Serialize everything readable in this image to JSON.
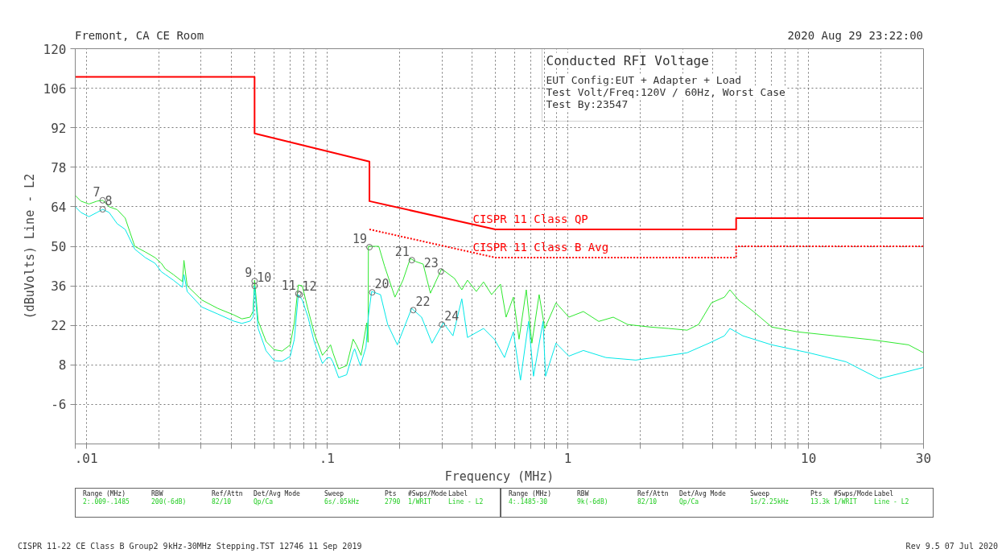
{
  "chart_data": {
    "type": "line",
    "title": "Conducted RFI Voltage",
    "xlabel": "Frequency (MHz)",
    "ylabel": "(dBuVolts) Line - L2",
    "log": "x",
    "grid": true,
    "marker": "none",
    "xlim": [
      0.009,
      30
    ],
    "ylim": [
      -20,
      120
    ],
    "xticks": [
      {
        "value": 0.009,
        "label": null
      },
      {
        "value": 0.01,
        "label": ".01"
      },
      {
        "value": 0.02,
        "label": null
      },
      {
        "value": 0.03,
        "label": null
      },
      {
        "value": 0.04,
        "label": null
      },
      {
        "value": 0.05,
        "label": null
      },
      {
        "value": 0.06,
        "label": null
      },
      {
        "value": 0.07,
        "label": null
      },
      {
        "value": 0.08,
        "label": null
      },
      {
        "value": 0.09,
        "label": null
      },
      {
        "value": 0.1,
        "label": ".1"
      },
      {
        "value": 0.2,
        "label": null
      },
      {
        "value": 0.3,
        "label": null
      },
      {
        "value": 0.4,
        "label": null
      },
      {
        "value": 0.5,
        "label": null
      },
      {
        "value": 0.6,
        "label": null
      },
      {
        "value": 0.7,
        "label": null
      },
      {
        "value": 0.8,
        "label": null
      },
      {
        "value": 0.9,
        "label": null
      },
      1,
      {
        "value": 2,
        "label": null
      },
      {
        "value": 3,
        "label": null
      },
      {
        "value": 4,
        "label": null
      },
      {
        "value": 5,
        "label": null
      },
      {
        "value": 6,
        "label": null
      },
      {
        "value": 7,
        "label": null
      },
      {
        "value": 8,
        "label": null
      },
      {
        "value": 9,
        "label": null
      },
      10,
      {
        "value": 20,
        "label": null
      },
      30
    ],
    "yticks": [
      -6,
      8,
      22,
      36,
      50,
      64,
      78,
      92,
      106,
      120
    ],
    "series": [
      {
        "name": "CISPR 11 Class QP",
        "color": "#ff0000",
        "line_style": "solid",
        "x": [
          0.009,
          0.05,
          0.05,
          0.15,
          0.15,
          0.5,
          5,
          5,
          30
        ],
        "values": [
          110,
          110,
          90,
          80,
          66,
          56,
          56,
          60,
          60
        ]
      },
      {
        "name": "CISPR 11 Class B Avg",
        "color": "#ff0000",
        "line_style": "dotted",
        "x": [
          0.15,
          0.5,
          5,
          5,
          30
        ],
        "values": [
          56,
          46,
          46,
          50,
          50
        ]
      },
      {
        "color": "#2ee82e",
        "line_style": "solid",
        "x": [
          0.009,
          0.0095,
          0.01026,
          0.01108,
          0.0117,
          0.01244,
          0.01344,
          0.01451,
          0.0159,
          0.01759,
          0.0193,
          0.0205,
          0.0213,
          0.023,
          0.02507,
          0.02545,
          0.02625,
          0.03016,
          0.0352,
          0.041,
          0.0443,
          0.0479,
          0.0493,
          0.05,
          0.0517,
          0.0558,
          0.0603,
          0.0651,
          0.0703,
          0.0731,
          0.076,
          0.0789,
          0.0833,
          0.0886,
          0.0957,
          0.1,
          0.1034,
          0.1058,
          0.1117,
          0.1206,
          0.1283,
          0.1323,
          0.1385,
          0.1462,
          0.148,
          0.1485,
          0.164,
          0.1733,
          0.1914,
          0.2067,
          0.2216,
          0.2338,
          0.2507,
          0.2687,
          0.2992,
          0.3385,
          0.3628,
          0.383,
          0.4168,
          0.4467,
          0.4823,
          0.525,
          0.554,
          0.594,
          0.627,
          0.672,
          0.709,
          0.76,
          0.802,
          0.893,
          1.01,
          1.16,
          1.344,
          1.544,
          1.773,
          2.2,
          2.62,
          3.13,
          3.49,
          3.95,
          4.47,
          4.71,
          5.13,
          5.9,
          7.03,
          9.0,
          12.8,
          18.3,
          26.0,
          30
        ],
        "values": [
          68,
          66,
          65,
          66,
          66.3,
          64,
          63,
          60,
          50,
          48,
          46,
          44,
          42,
          40,
          37.5,
          45,
          36,
          31,
          28,
          25.7,
          24.3,
          24.9,
          27,
          38,
          23.7,
          16.3,
          13.4,
          12.9,
          15.1,
          22.9,
          36.3,
          36,
          27.7,
          19,
          11.4,
          13.4,
          15.1,
          12.3,
          6.6,
          7.7,
          17.1,
          15.1,
          11.4,
          22.9,
          16,
          50,
          50,
          43,
          32,
          38,
          45.7,
          44.6,
          43.7,
          33.4,
          42,
          38.6,
          34.6,
          38,
          34,
          37.4,
          32.9,
          36.6,
          24.9,
          32,
          17.1,
          34.6,
          15.7,
          32.9,
          20.9,
          30,
          24.9,
          26.9,
          23.4,
          24.9,
          22.3,
          21.4,
          20.9,
          20.3,
          22.3,
          30,
          32,
          34.6,
          30.9,
          26.9,
          21.4,
          19.7,
          18.3,
          16.9,
          15.1,
          12.3
        ]
      },
      {
        "color": "#00e8e8",
        "line_style": "solid",
        "x": [
          0.009,
          0.0095,
          0.01026,
          0.01108,
          0.0117,
          0.01244,
          0.01344,
          0.01451,
          0.0159,
          0.01759,
          0.0193,
          0.0205,
          0.0213,
          0.023,
          0.02507,
          0.02545,
          0.02625,
          0.03016,
          0.0352,
          0.041,
          0.0443,
          0.0479,
          0.0493,
          0.05,
          0.0517,
          0.0558,
          0.0603,
          0.0651,
          0.0703,
          0.0731,
          0.076,
          0.0789,
          0.0833,
          0.0886,
          0.0957,
          0.1,
          0.1034,
          0.1058,
          0.1117,
          0.1206,
          0.1283,
          0.1302,
          0.1375,
          0.1451,
          0.1485,
          0.1532,
          0.1667,
          0.1786,
          0.1959,
          0.2245,
          0.2469,
          0.2728,
          0.3039,
          0.3333,
          0.3628,
          0.383,
          0.4467,
          0.4974,
          0.5456,
          0.594,
          0.636,
          0.687,
          0.72,
          0.789,
          0.808,
          0.893,
          1.01,
          1.16,
          1.439,
          1.914,
          2.53,
          3.13,
          3.86,
          4.47,
          4.71,
          5.33,
          7.03,
          10.0,
          14.3,
          19.6,
          24.3,
          30
        ],
        "values": [
          64,
          62,
          60.5,
          62,
          63.1,
          62,
          58,
          56,
          49,
          46,
          44,
          41,
          40,
          38,
          35.5,
          40,
          34,
          28.5,
          26,
          23.5,
          22.7,
          23.5,
          25,
          36,
          21,
          13,
          9.5,
          9.3,
          11,
          17,
          32.9,
          31,
          25,
          16,
          8.5,
          10.5,
          10.5,
          9,
          3.5,
          4.5,
          12.5,
          13.7,
          7.7,
          14.3,
          25.4,
          34,
          32.9,
          22.3,
          15.1,
          28,
          24.9,
          15.7,
          22.9,
          18.3,
          31.4,
          17.7,
          20.9,
          16.9,
          10.6,
          19.7,
          2.6,
          23.4,
          4,
          23.4,
          4,
          15.7,
          11.1,
          13.1,
          10.6,
          9.7,
          11.1,
          12.3,
          15.7,
          18.3,
          20.9,
          18.3,
          15.1,
          12.3,
          9.1,
          3.1,
          5.1,
          7.1
        ]
      }
    ],
    "annotations": [
      "Fremont, CA CE Room",
      "2020 Aug 29   23:22:00",
      "EUT Config:EUT + Adapter + Load",
      "Test Volt/Freq:120V / 60Hz, Worst Case",
      "Test By:23547",
      "CISPR 11-22 CE Class B Group2 9kHz-30MHz Stepping.TST 12746 11 Sep 2019",
      "Rev 9.5 07 Jul 2020",
      "Range (MHz)",
      "RBW",
      "Ref/Attn",
      "Det/Avg Mode",
      "Sweep",
      "Pts",
      "#Swps/Mode",
      "Label",
      "2:.009-.1485",
      "200(-6dB)",
      "82/10",
      "Qp/Ca",
      "6s/.05kHz",
      "2790",
      "1/WRIT",
      "Line - L2",
      "Range (MHz)",
      "RBW",
      "Ref/Attn",
      "Det/Avg Mode",
      "Sweep",
      "Pts",
      "#Swps/Mode",
      "Label",
      "4:.1485-30",
      "9k(-6dB)",
      "82/10",
      "Qp/Ca",
      "1s/2.25kHz",
      "13.3k",
      "1/WRIT",
      "Line - L2",
      {
        "text": "7",
        "x": 0.0117,
        "y": 66.3
      },
      {
        "text": "8",
        "x": 0.0117,
        "y": 63.1
      },
      {
        "text": "9",
        "x": 0.05,
        "y": 37.7
      },
      {
        "text": "10",
        "x": 0.05,
        "y": 36
      },
      {
        "text": "11",
        "x": 0.076,
        "y": 33.2
      },
      {
        "text": "12",
        "x": 0.077,
        "y": 32.9
      },
      {
        "text": "19",
        "x": 0.15,
        "y": 49.7
      },
      {
        "text": "20",
        "x": 0.154,
        "y": 33.7
      },
      {
        "text": "21",
        "x": 0.225,
        "y": 45.1
      },
      {
        "text": "22",
        "x": 0.228,
        "y": 27.4
      },
      {
        "text": "23",
        "x": 0.297,
        "y": 41.1
      },
      {
        "text": "24",
        "x": 0.3,
        "y": 22.3
      }
    ]
  }
}
